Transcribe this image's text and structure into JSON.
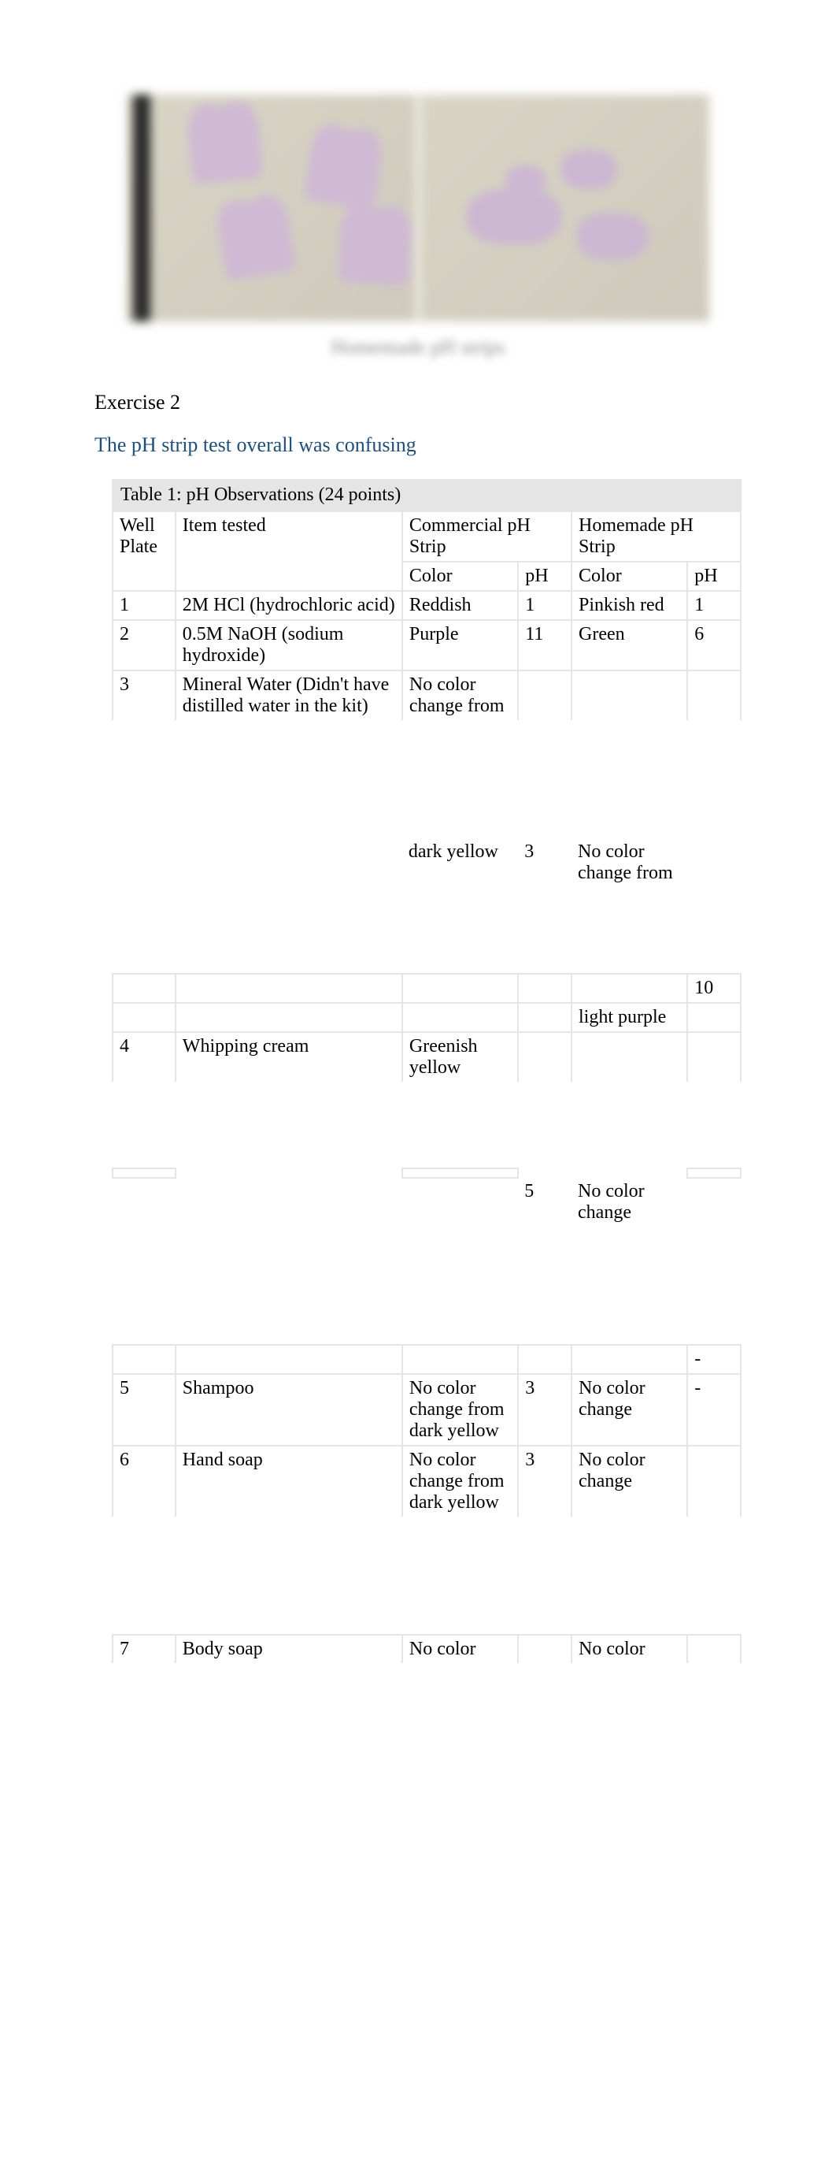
{
  "figure": {
    "caption": "Homemade pH strips"
  },
  "headings": {
    "exercise": "Exercise 2",
    "sub": "The pH strip test overall was confusing"
  },
  "table": {
    "title": "Table 1: pH Observations (24 points)",
    "header": {
      "well": "Well Plate",
      "item": "Item tested",
      "commercial": "Commercial pH Strip",
      "homemade": "Homemade pH Strip",
      "color": "Color",
      "ph": "pH"
    },
    "rows": {
      "r1": {
        "well": "1",
        "item": "2M HCl (hydrochloric acid)",
        "c_color": "Reddish",
        "c_ph": "1",
        "h_color": "Pinkish red",
        "h_ph": "1"
      },
      "r2": {
        "well": "2",
        "item": "0.5M NaOH (sodium hydroxide)",
        "c_color": "Purple",
        "c_ph": "11",
        "h_color": "Green",
        "h_ph": "6"
      },
      "r3": {
        "well": "3",
        "item": "Mineral Water (Didn't have distilled water in the kit)",
        "c_color_a": "No color change from",
        "c_color_b": "dark yellow",
        "c_ph": "3",
        "h_color_a": "No color change from",
        "h_color_b": "light purple",
        "h_ph": "10"
      },
      "r4": {
        "well": "4",
        "item": "Whipping cream",
        "c_color": "Greenish yellow",
        "c_ph": "5",
        "h_color": "No color change",
        "h_ph": "-"
      },
      "r5": {
        "well": "5",
        "item": "Shampoo",
        "c_color": "No color change from dark yellow",
        "c_ph": "3",
        "h_color": "No color change",
        "h_ph": "-"
      },
      "r6": {
        "well": "6",
        "item": "Hand soap",
        "c_color": "No color change from dark yellow",
        "c_ph": "3",
        "h_color": "No color change",
        "h_ph": ""
      },
      "r7": {
        "well": "7",
        "item": "Body soap",
        "c_color": "No color",
        "c_ph": "",
        "h_color": "No color",
        "h_ph": ""
      }
    }
  },
  "colors": {
    "heading_blue": "#1f4e79",
    "border_gray": "#e5e5e5",
    "caption_bg": "#e5e5e5",
    "text": "#000000"
  }
}
